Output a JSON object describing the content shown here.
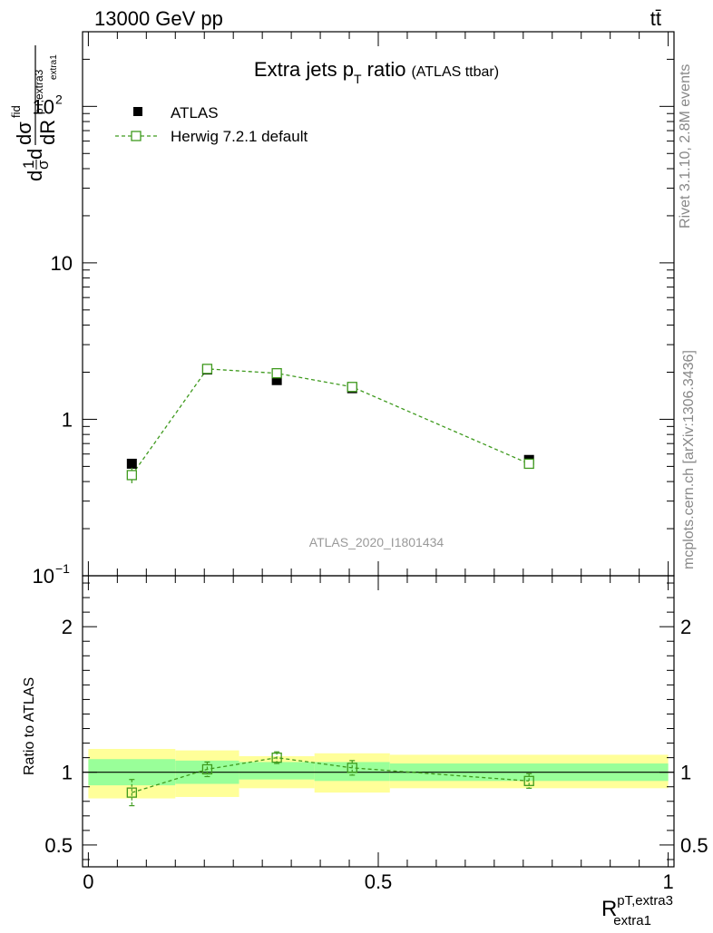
{
  "header": {
    "left": "13000 GeV pp",
    "right": "tt̄"
  },
  "side": {
    "rivet": "Rivet 3.1.10,  2.8M events",
    "mcplots": "mcplots.cern.ch [arXiv:1306.3436]"
  },
  "chart_data": {
    "type": "scatter",
    "title": "Extra jets p",
    "title_sub": "T",
    "title_after": " ratio",
    "title_paren": "(ATLAS ttbar)",
    "analysis_label": "ATLAS_2020_I1801434",
    "xlabel": "R",
    "xlabel_sup": "pT,extra3",
    "xlabel_sub": "extra1",
    "ylabel": {
      "d1": "d",
      "one": "1",
      "sigma": "σ",
      "d2": "d",
      "frac_top": "dσ",
      "fid": "fid",
      "frac_bottom": "dR",
      "sup": "pT,extra3",
      "sub": "extra1"
    },
    "xlim": [
      -0.01,
      1.01
    ],
    "ylim": [
      0.1,
      300
    ],
    "yscale": "log",
    "y_ticks": [
      {
        "v": 0.1,
        "label": "10",
        "exp": "−1"
      },
      {
        "v": 1,
        "label": "1",
        "exp": ""
      },
      {
        "v": 10,
        "label": "10",
        "exp": ""
      },
      {
        "v": 100,
        "label": "10",
        "exp": "2"
      }
    ],
    "x_ticks": [
      {
        "v": 0,
        "label": "0"
      },
      {
        "v": 0.5,
        "label": "0.5"
      },
      {
        "v": 1,
        "label": "1"
      }
    ],
    "bins": [
      {
        "lo": 0,
        "hi": 0.15
      },
      {
        "lo": 0.15,
        "hi": 0.26
      },
      {
        "lo": 0.26,
        "hi": 0.39
      },
      {
        "lo": 0.39,
        "hi": 0.52
      },
      {
        "lo": 0.52,
        "hi": 1.0
      }
    ],
    "series": [
      {
        "name": "ATLAS",
        "marker": "filled-square",
        "color": "#000000",
        "x": [
          0.075,
          0.205,
          0.325,
          0.455,
          0.76
        ],
        "y": [
          0.52,
          2.08,
          1.78,
          1.58,
          0.55
        ]
      },
      {
        "name": "Herwig 7.2.1 default",
        "marker": "open-square",
        "color": "#3f9a1e",
        "line": "dashed",
        "x": [
          0.075,
          0.205,
          0.325,
          0.455,
          0.76
        ],
        "y": [
          0.44,
          2.1,
          1.97,
          1.61,
          0.52
        ],
        "yerr": [
          0.05,
          0.06,
          0.06,
          0.06,
          0.03
        ]
      }
    ],
    "ratio": {
      "ylabel": "Ratio to ATLAS",
      "ylim": [
        0.35,
        2.35
      ],
      "y_ticks": [
        {
          "v": 0.5,
          "label": "0.5"
        },
        {
          "v": 1,
          "label": "1"
        },
        {
          "v": 2,
          "label": "2"
        }
      ],
      "values": [
        0.86,
        1.02,
        1.1,
        1.03,
        0.94
      ],
      "errors": [
        0.09,
        0.05,
        0.04,
        0.05,
        0.05
      ],
      "band_inner": [
        [
          0.91,
          1.09
        ],
        [
          0.92,
          1.08
        ],
        [
          0.95,
          1.07
        ],
        [
          0.94,
          1.07
        ],
        [
          0.94,
          1.06
        ]
      ],
      "band_outer": [
        [
          0.82,
          1.16
        ],
        [
          0.83,
          1.15
        ],
        [
          0.89,
          1.11
        ],
        [
          0.86,
          1.13
        ],
        [
          0.89,
          1.12
        ]
      ],
      "inner_color": "#99ff99",
      "outer_color": "#ffff99"
    }
  }
}
